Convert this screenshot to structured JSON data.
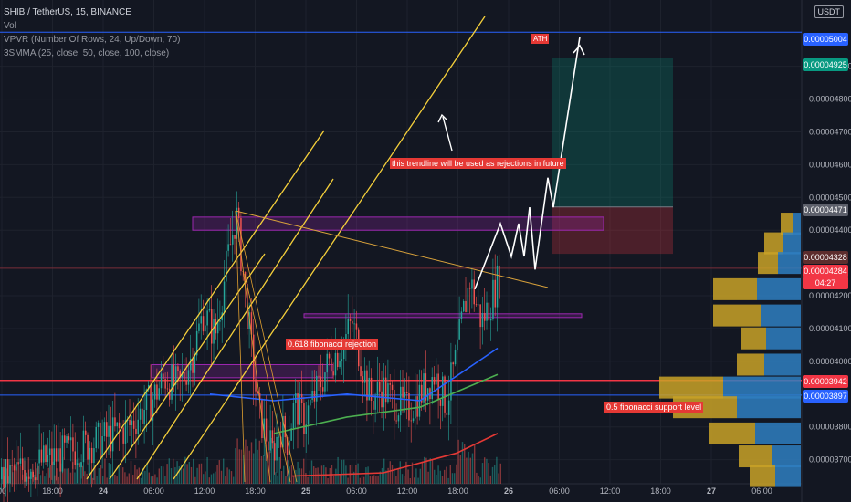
{
  "legend": {
    "symbol": "SHIB / TetherUS, 15, BINANCE",
    "vol": "Vol",
    "vpvr": "VPVR (Number Of Rows, 24, Up/Down, 70)",
    "smma": "3SMMA (25, close, 50, close, 100, close)"
  },
  "currency": "USDT",
  "price_tags": [
    {
      "label": "0.00005004",
      "color": "#2962ff"
    },
    {
      "label": "0.00004925",
      "color": "#089981"
    },
    {
      "label": "0.00004471",
      "color": "#5d606b"
    },
    {
      "label": "0.00004328",
      "color": "#5d2d2d"
    },
    {
      "label": "0.00004284",
      "color": "#f23645"
    },
    {
      "label": "04:27",
      "color": "#f23645"
    },
    {
      "label": "0.00003942",
      "color": "#f23645"
    },
    {
      "label": "0.00003897",
      "color": "#2962ff"
    }
  ],
  "annotations": {
    "ath": "ATH",
    "trendline": "this trendline will be used as rejections in future",
    "fib618": "0.618 fibonacci rejection",
    "fib5": "0.5 fibonacci support level"
  },
  "colors": {
    "background": "#131722",
    "up": "#26a69a",
    "down": "#ef5350",
    "trend_yellow": "#f5d03b",
    "trend_orange": "#d9a23b",
    "zone_purple": "#9c27b0",
    "blue_line": "#2962ff",
    "red_line": "#f23645",
    "vp_up": "#2f7fc1",
    "vp_down": "#c9a227"
  },
  "chart_data": {
    "type": "candlestick",
    "title": "SHIB / TetherUS, 15, BINANCE",
    "ylim": [
      3.66e-05,
      5.08e-05
    ],
    "y_ticks": [
      "0.00004900",
      "0.00004800",
      "0.00004700",
      "0.00004600",
      "0.00004500",
      "0.00004400",
      "0.00004200",
      "0.00004100",
      "0.00004000",
      "0.00003800",
      "0.00003700"
    ],
    "x_ticks": [
      "00",
      "18:00",
      "24",
      "06:00",
      "12:00",
      "18:00",
      "25",
      "06:00",
      "12:00",
      "18:00",
      "26",
      "06:00",
      "12:00",
      "18:00",
      "27",
      "06:00"
    ],
    "price_path": [
      [
        0,
        3.64e-05
      ],
      [
        30,
        3.68e-05
      ],
      [
        55,
        3.7e-05
      ],
      [
        80,
        3.73e-05
      ],
      [
        110,
        3.76e-05
      ],
      [
        140,
        3.8e-05
      ],
      [
        165,
        3.88e-05
      ],
      [
        180,
        3.95e-05
      ],
      [
        195,
        3.92e-05
      ],
      [
        210,
        4.02e-05
      ],
      [
        222,
        4.15e-05
      ],
      [
        235,
        4.08e-05
      ],
      [
        248,
        4.3e-05
      ],
      [
        258,
        4.45e-05
      ],
      [
        266,
        4.26e-05
      ],
      [
        274,
        4.05e-05
      ],
      [
        282,
        3.85e-05
      ],
      [
        290,
        3.78e-05
      ],
      [
        298,
        3.72e-05
      ],
      [
        306,
        3.8e-05
      ],
      [
        314,
        3.76e-05
      ],
      [
        322,
        3.87e-05
      ],
      [
        332,
        3.82e-05
      ],
      [
        345,
        3.9e-05
      ],
      [
        360,
        4e-05
      ],
      [
        375,
        4.05e-05
      ],
      [
        385,
        4.12e-05
      ],
      [
        395,
        4e-05
      ],
      [
        405,
        3.88e-05
      ],
      [
        418,
        3.92e-05
      ],
      [
        430,
        3.88e-05
      ],
      [
        445,
        3.85e-05
      ],
      [
        460,
        3.9e-05
      ],
      [
        475,
        3.96e-05
      ],
      [
        488,
        3.87e-05
      ],
      [
        498,
        4e-05
      ],
      [
        507,
        4.15e-05
      ],
      [
        514,
        4.25e-05
      ],
      [
        520,
        4.18e-05
      ],
      [
        527,
        4.12e-05
      ],
      [
        536,
        4.18e-05
      ],
      [
        545,
        4.25e-05
      ]
    ],
    "smma": [
      {
        "period": 25,
        "color": "#2962ff",
        "points": [
          [
            230,
            3.9e-05
          ],
          [
            300,
            3.88e-05
          ],
          [
            380,
            3.9e-05
          ],
          [
            460,
            3.88e-05
          ],
          [
            545,
            4.04e-05
          ]
        ]
      },
      {
        "period": 50,
        "color": "#4caf50",
        "points": [
          [
            300,
            3.78e-05
          ],
          [
            380,
            3.83e-05
          ],
          [
            460,
            3.86e-05
          ],
          [
            545,
            3.96e-05
          ]
        ]
      },
      {
        "period": 100,
        "color": "#e53935",
        "points": [
          [
            320,
            3.65e-05
          ],
          [
            420,
            3.66e-05
          ],
          [
            500,
            3.72e-05
          ],
          [
            545,
            3.78e-05
          ]
        ]
      }
    ],
    "horizontal_levels": [
      {
        "value": 5.004e-05,
        "color": "#2962ff",
        "label": "ATH"
      },
      {
        "value": 3.942e-05,
        "color": "#f23645"
      },
      {
        "value": 3.897e-05,
        "color": "#2962ff"
      },
      {
        "value": 4.284e-05,
        "color": "#7a2e3a"
      }
    ],
    "zones": [
      {
        "x": [
          211,
          661
        ],
        "y": [
          4.44e-05,
          4.4e-05
        ]
      },
      {
        "x": [
          166,
          365
        ],
        "y": [
          3.99e-05,
          3.95e-05
        ]
      },
      {
        "x": [
          333,
          637
        ],
        "y": [
          4.145e-05,
          4.135e-05
        ]
      }
    ],
    "long_position": {
      "x": [
        605,
        737
      ],
      "entry": 4.471e-05,
      "target": 4.925e-05,
      "stop": 4.328e-05
    },
    "projection": [
      [
        520,
        4.22e-05
      ],
      [
        548,
        4.42e-05
      ],
      [
        560,
        4.32e-05
      ],
      [
        568,
        4.42e-05
      ],
      [
        574,
        4.32e-05
      ],
      [
        580,
        4.47e-05
      ],
      [
        586,
        4.28e-05
      ],
      [
        600,
        4.56e-05
      ],
      [
        606,
        4.47e-05
      ],
      [
        635,
        4.99e-05
      ]
    ],
    "volume_profile": [
      {
        "price": 4.42e-05,
        "up": 8,
        "down": 14
      },
      {
        "price": 4.36e-05,
        "up": 20,
        "down": 20
      },
      {
        "price": 4.3e-05,
        "up": 25,
        "down": 22
      },
      {
        "price": 4.22e-05,
        "up": 48,
        "down": 48
      },
      {
        "price": 4.14e-05,
        "up": 44,
        "down": 52
      },
      {
        "price": 4.07e-05,
        "up": 38,
        "down": 28
      },
      {
        "price": 3.99e-05,
        "up": 40,
        "down": 30
      },
      {
        "price": 3.92e-05,
        "up": 85,
        "down": 70
      },
      {
        "price": 3.86e-05,
        "up": 70,
        "down": 70
      },
      {
        "price": 3.78e-05,
        "up": 50,
        "down": 50
      },
      {
        "price": 3.71e-05,
        "up": 32,
        "down": 36
      },
      {
        "price": 3.65e-05,
        "up": 28,
        "down": 28
      }
    ]
  }
}
